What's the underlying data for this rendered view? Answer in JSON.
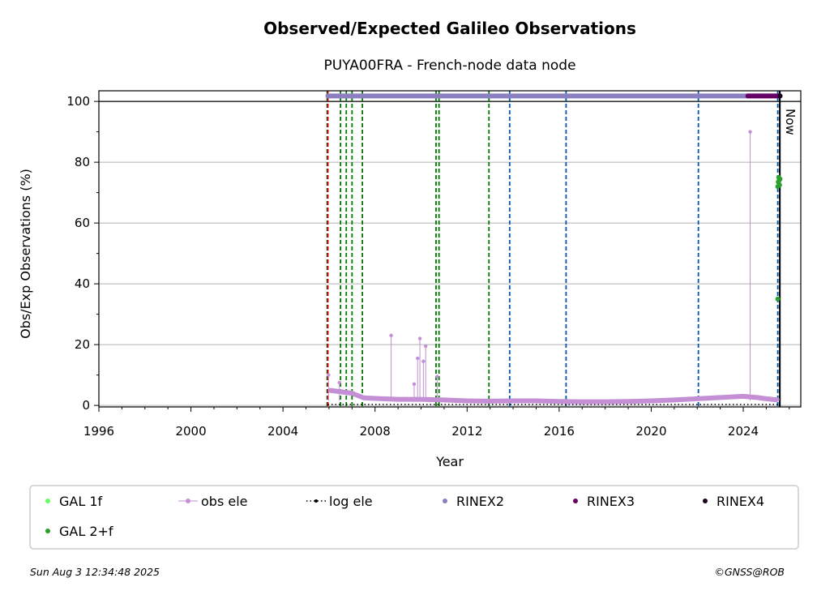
{
  "chart_data": {
    "type": "scatter",
    "title": "Observed/Expected Galileo Observations",
    "subtitle": "PUYA00FRA - French-node data node",
    "xlabel": "Year",
    "ylabel": "Obs/Exp Observations (%)",
    "xlim": [
      1996,
      2026.5
    ],
    "ylim": [
      -0.5,
      103.5
    ],
    "x_ticks": [
      "1996",
      "2000",
      "2004",
      "2008",
      "2012",
      "2016",
      "2020",
      "2024"
    ],
    "y_ticks": [
      "0",
      "20",
      "40",
      "60",
      "80",
      "100"
    ],
    "grid": "horizontal",
    "now_label": "Now",
    "now_year": 2025.59,
    "colors": {
      "gal_1f": "#66ff66",
      "gal_2f": "#2ca02c",
      "obs_ele": "#c48fd4",
      "log_ele": "#000000",
      "rinex2": "#8c7fc0",
      "rinex3": "#660066",
      "rinex4": "#1a001a",
      "green_event": "#007700",
      "blue_event": "#0055aa",
      "red_event": "#cc0000"
    },
    "event_lines": {
      "red": [
        2005.95
      ],
      "green": [
        2005.92,
        2006.5,
        2006.75,
        2007.0,
        2007.45,
        2010.65,
        2010.78,
        2012.95
      ],
      "blue": [
        2013.85,
        2016.3,
        2022.05,
        2025.5,
        2025.58
      ]
    },
    "series": [
      {
        "name": "RINEX2",
        "range": [
          2005.95,
          2024.2
        ],
        "y": 101.8
      },
      {
        "name": "RINEX3",
        "range": [
          2024.2,
          2025.6
        ],
        "y": 101.8
      },
      {
        "name": "RINEX4",
        "points": [
          [
            2025.6,
            101.8
          ]
        ]
      },
      {
        "name": "GAL 2+f",
        "points": [
          [
            2025.5,
            72
          ],
          [
            2025.52,
            73.5
          ],
          [
            2025.54,
            75
          ],
          [
            2025.56,
            74
          ],
          [
            2025.58,
            72.5
          ],
          [
            2025.6,
            74.5
          ],
          [
            2025.5,
            35
          ]
        ]
      },
      {
        "name": "GAL 1f",
        "points": []
      },
      {
        "name": "obs ele",
        "spikes": [
          [
            2005.98,
            10
          ],
          [
            2006.45,
            7.5
          ],
          [
            2008.7,
            23
          ],
          [
            2009.7,
            7
          ],
          [
            2009.85,
            15.5
          ],
          [
            2009.95,
            22
          ],
          [
            2010.1,
            14.5
          ],
          [
            2010.2,
            19.5
          ],
          [
            2010.7,
            9.5
          ],
          [
            2024.3,
            90
          ],
          [
            2025.5,
            2
          ]
        ],
        "baseline": [
          [
            2006.0,
            5
          ],
          [
            2006.5,
            4.5
          ],
          [
            2007.0,
            4
          ],
          [
            2007.5,
            2.5
          ],
          [
            2008.0,
            2.3
          ],
          [
            2009.0,
            2
          ],
          [
            2010.0,
            2
          ],
          [
            2011.0,
            1.8
          ],
          [
            2012.0,
            1.5
          ],
          [
            2013.0,
            1.4
          ],
          [
            2014.0,
            1.5
          ],
          [
            2015.0,
            1.5
          ],
          [
            2016.0,
            1.3
          ],
          [
            2017.0,
            1.2
          ],
          [
            2018.0,
            1.2
          ],
          [
            2019.0,
            1.3
          ],
          [
            2020.0,
            1.5
          ],
          [
            2021.0,
            1.8
          ],
          [
            2022.0,
            2.2
          ],
          [
            2023.0,
            2.6
          ],
          [
            2024.0,
            3.0
          ],
          [
            2024.6,
            2.6
          ],
          [
            2025.0,
            2.2
          ],
          [
            2025.5,
            1.8
          ]
        ]
      },
      {
        "name": "log ele",
        "baseline": [
          [
            2005.95,
            0.3
          ],
          [
            2025.6,
            0.3
          ]
        ]
      }
    ],
    "legend": {
      "placement": "bottom",
      "entries": [
        {
          "label": "GAL 1f",
          "marker": "dot",
          "color": "#66ff66"
        },
        {
          "label": "obs ele",
          "marker": "line-dot",
          "color": "#c48fd4"
        },
        {
          "label": "log ele",
          "marker": "dotted-line",
          "color": "#000000"
        },
        {
          "label": "RINEX2",
          "marker": "dot",
          "color": "#8c7fc0"
        },
        {
          "label": "RINEX3",
          "marker": "dot",
          "color": "#660066"
        },
        {
          "label": "RINEX4",
          "marker": "dot",
          "color": "#1a001a"
        },
        {
          "label": "GAL 2+f",
          "marker": "dot",
          "color": "#2ca02c"
        }
      ]
    }
  },
  "footer": {
    "timestamp": "Sun Aug  3 12:34:48 2025",
    "copyright": "©GNSS@ROB"
  }
}
